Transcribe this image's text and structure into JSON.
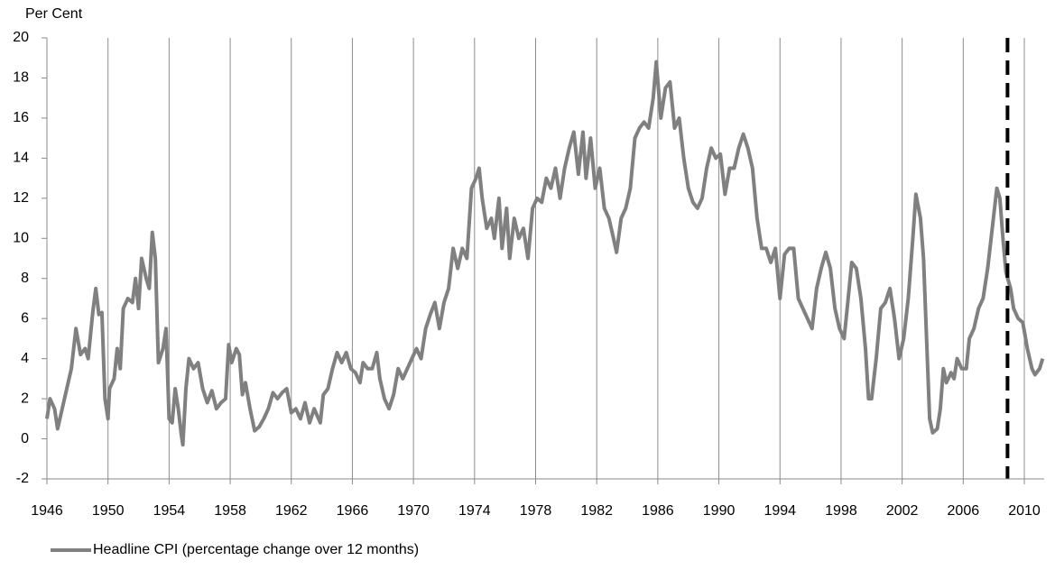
{
  "chart_data": {
    "type": "line",
    "ylabel": "Per Cent",
    "xlim": [
      1946,
      2011.3
    ],
    "ylim": [
      -2,
      20
    ],
    "xticks": [
      1946,
      1950,
      1954,
      1958,
      1962,
      1966,
      1970,
      1974,
      1978,
      1982,
      1986,
      1990,
      1994,
      1998,
      2002,
      2006,
      2010
    ],
    "yticks": [
      -2,
      0,
      2,
      4,
      6,
      8,
      10,
      12,
      14,
      16,
      18,
      20
    ],
    "grid": "x",
    "dashed_line_x": 2008.9,
    "dashed_line_color": "#000000",
    "legend": "bottom-left",
    "series": [
      {
        "name": "Headline CPI (percentage change over 12 months)",
        "color": "#808080",
        "x": [
          1946.0,
          1946.2,
          1946.5,
          1946.7,
          1947.0,
          1947.3,
          1947.6,
          1947.9,
          1948.2,
          1948.5,
          1948.7,
          1949.0,
          1949.2,
          1949.4,
          1949.6,
          1949.8,
          1950.0,
          1950.1,
          1950.4,
          1950.6,
          1950.8,
          1951.0,
          1951.3,
          1951.6,
          1951.8,
          1952.0,
          1952.2,
          1952.5,
          1952.7,
          1952.9,
          1953.1,
          1953.3,
          1953.6,
          1953.8,
          1954.0,
          1954.2,
          1954.4,
          1954.6,
          1954.8,
          1954.9,
          1955.1,
          1955.3,
          1955.6,
          1955.9,
          1956.2,
          1956.5,
          1956.8,
          1957.1,
          1957.4,
          1957.7,
          1957.9,
          1958.1,
          1958.4,
          1958.6,
          1958.8,
          1959.0,
          1959.3,
          1959.6,
          1959.9,
          1960.2,
          1960.5,
          1960.8,
          1961.1,
          1961.4,
          1961.7,
          1962.0,
          1962.3,
          1962.6,
          1962.9,
          1963.2,
          1963.5,
          1963.9,
          1964.1,
          1964.4,
          1964.7,
          1965.0,
          1965.3,
          1965.6,
          1965.9,
          1966.2,
          1966.5,
          1966.7,
          1967.0,
          1967.3,
          1967.6,
          1967.8,
          1968.1,
          1968.4,
          1968.7,
          1969.0,
          1969.3,
          1969.6,
          1969.9,
          1970.2,
          1970.5,
          1970.8,
          1971.1,
          1971.4,
          1971.7,
          1972.0,
          1972.3,
          1972.6,
          1972.9,
          1973.2,
          1973.5,
          1973.8,
          1974.1,
          1974.3,
          1974.5,
          1974.8,
          1975.1,
          1975.3,
          1975.6,
          1975.8,
          1976.1,
          1976.3,
          1976.6,
          1976.9,
          1977.2,
          1977.5,
          1977.8,
          1978.1,
          1978.4,
          1978.7,
          1979.0,
          1979.3,
          1979.6,
          1979.9,
          1980.2,
          1980.5,
          1980.8,
          1981.1,
          1981.3,
          1981.6,
          1981.9,
          1982.2,
          1982.5,
          1982.8,
          1983.1,
          1983.3,
          1983.6,
          1983.9,
          1984.2,
          1984.5,
          1984.8,
          1985.1,
          1985.4,
          1985.7,
          1985.9,
          1986.2,
          1986.5,
          1986.8,
          1987.1,
          1987.4,
          1987.7,
          1988.0,
          1988.3,
          1988.6,
          1988.9,
          1989.2,
          1989.5,
          1989.8,
          1990.1,
          1990.4,
          1990.7,
          1991.0,
          1991.3,
          1991.6,
          1991.9,
          1992.2,
          1992.5,
          1992.8,
          1993.1,
          1993.4,
          1993.7,
          1994.0,
          1994.3,
          1994.6,
          1994.9,
          1995.2,
          1995.5,
          1995.8,
          1996.1,
          1996.4,
          1996.7,
          1997.0,
          1997.3,
          1997.6,
          1997.9,
          1998.2,
          1998.4,
          1998.7,
          1999.0,
          1999.3,
          1999.6,
          1999.8,
          2000.0,
          2000.3,
          2000.6,
          2000.9,
          2001.2,
          2001.5,
          2001.8,
          2002.1,
          2002.4,
          2002.7,
          2002.9,
          2003.2,
          2003.4,
          2003.6,
          2003.8,
          2004.0,
          2004.3,
          2004.5,
          2004.7,
          2004.9,
          2005.2,
          2005.4,
          2005.6,
          2005.9,
          2006.2,
          2006.4,
          2006.7,
          2007.0,
          2007.3,
          2007.6,
          2007.9,
          2008.2,
          2008.4,
          2008.6,
          2008.8,
          2009.1,
          2009.3,
          2009.6,
          2009.9,
          2010.2,
          2010.5,
          2010.7,
          2011.0,
          2011.2
        ],
        "values": [
          1.0,
          2.0,
          1.5,
          0.5,
          1.5,
          2.5,
          3.5,
          5.5,
          4.2,
          4.5,
          4.0,
          6.3,
          7.5,
          6.2,
          6.3,
          2.0,
          1.0,
          2.5,
          3.0,
          4.5,
          3.5,
          6.5,
          7.0,
          6.8,
          8.0,
          6.5,
          9.0,
          8.0,
          7.5,
          10.3,
          9.0,
          3.8,
          4.5,
          5.5,
          1.0,
          0.8,
          2.5,
          1.5,
          0.2,
          -0.3,
          2.5,
          4.0,
          3.5,
          3.8,
          2.5,
          1.8,
          2.4,
          1.5,
          1.8,
          2.0,
          4.7,
          3.8,
          4.5,
          4.2,
          2.2,
          2.8,
          1.5,
          0.4,
          0.6,
          1.0,
          1.5,
          2.3,
          2.0,
          2.3,
          2.5,
          1.3,
          1.5,
          1.0,
          1.8,
          0.8,
          1.5,
          0.8,
          2.2,
          2.5,
          3.5,
          4.3,
          3.8,
          4.3,
          3.5,
          3.3,
          2.8,
          3.8,
          3.5,
          3.5,
          4.3,
          3.0,
          2.0,
          1.5,
          2.2,
          3.5,
          3.0,
          3.5,
          4.0,
          4.5,
          4.0,
          5.5,
          6.2,
          6.8,
          5.5,
          6.8,
          7.5,
          9.5,
          8.5,
          9.5,
          9.0,
          12.5,
          13.0,
          13.5,
          12.0,
          10.5,
          11.0,
          10.0,
          12.0,
          9.5,
          11.5,
          9.0,
          11.0,
          10.0,
          10.5,
          9.0,
          11.5,
          12.0,
          11.8,
          13.0,
          12.5,
          13.5,
          12.0,
          13.5,
          14.5,
          15.3,
          13.2,
          15.3,
          13.0,
          15.0,
          12.5,
          13.5,
          11.5,
          11.0,
          10.0,
          9.3,
          11.0,
          11.5,
          12.5,
          15.0,
          15.5,
          15.8,
          15.5,
          17.0,
          18.8,
          16.0,
          17.5,
          17.8,
          15.5,
          16.0,
          14.0,
          12.5,
          11.8,
          11.5,
          12.0,
          13.5,
          14.5,
          14.0,
          14.2,
          12.2,
          13.5,
          13.5,
          14.5,
          15.2,
          14.5,
          13.5,
          11.0,
          9.5,
          9.5,
          8.8,
          9.5,
          7.0,
          9.2,
          9.5,
          9.5,
          7.0,
          6.5,
          6.0,
          5.5,
          7.5,
          8.5,
          9.3,
          8.5,
          6.5,
          5.5,
          5.0,
          6.5,
          8.8,
          8.5,
          7.0,
          4.5,
          2.0,
          2.0,
          4.0,
          6.5,
          6.8,
          7.5,
          6.0,
          4.0,
          5.0,
          7.0,
          10.0,
          12.2,
          11.0,
          9.0,
          5.0,
          1.0,
          0.3,
          0.5,
          1.5,
          3.5,
          2.8,
          3.3,
          3.0,
          4.0,
          3.5,
          3.5,
          5.0,
          5.5,
          6.5,
          7.0,
          8.5,
          10.5,
          12.5,
          12.0,
          10.0,
          8.3,
          7.5,
          6.5,
          6.0,
          5.8,
          4.5,
          3.5,
          3.2,
          3.5,
          4.0
        ]
      }
    ]
  }
}
